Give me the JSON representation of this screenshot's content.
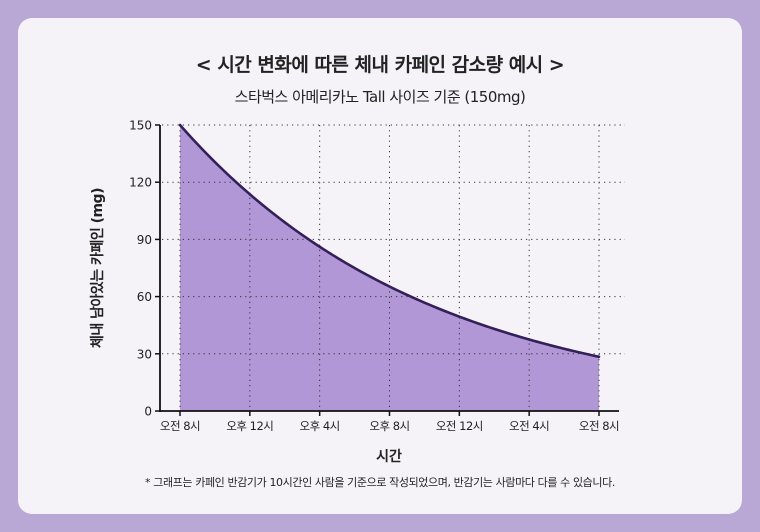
{
  "title": "< 시간 변화에 따른 체내 카페인 감소량 예시 >",
  "subtitle": "스타벅스 아메리카노 Tall 사이즈 기준 (150mg)",
  "footnote": "* 그래프는 카페인 반감기가 10시간인 사람을 기준으로 작성되었으며, 반감기는 사람마다 다를 수 있습니다.",
  "colors": {
    "background": "#b9a8d6",
    "card": "#f5f3f8",
    "area": "#b197d6",
    "line": "#33205a",
    "axis": "#111111"
  },
  "chart_data": {
    "type": "area",
    "title": "< 시간 변화에 따른 체내 카페인 감소량 예시 >",
    "subtitle": "스타벅스 아메리카노 Tall 사이즈 기준 (150mg)",
    "xlabel": "시간",
    "ylabel": "체내 남아있는 카페인 (mg)",
    "x_hours": [
      0,
      4,
      8,
      12,
      16,
      20,
      24
    ],
    "categories": [
      "오전 8시",
      "오후 12시",
      "오후 4시",
      "오후 8시",
      "오전 12시",
      "오전 4시",
      "오전 8시"
    ],
    "series": [
      {
        "name": "체내 카페인 (mg)",
        "values": [
          150,
          113.7,
          86.1,
          65.3,
          49.5,
          37.5,
          28.4
        ]
      }
    ],
    "half_life_hours": 10,
    "initial_mg": 150,
    "yticks": [
      0,
      30,
      60,
      90,
      120,
      150
    ],
    "ylim": [
      0,
      150
    ],
    "xlim": [
      0,
      24
    ],
    "grid": "dotted",
    "legend": "none"
  }
}
